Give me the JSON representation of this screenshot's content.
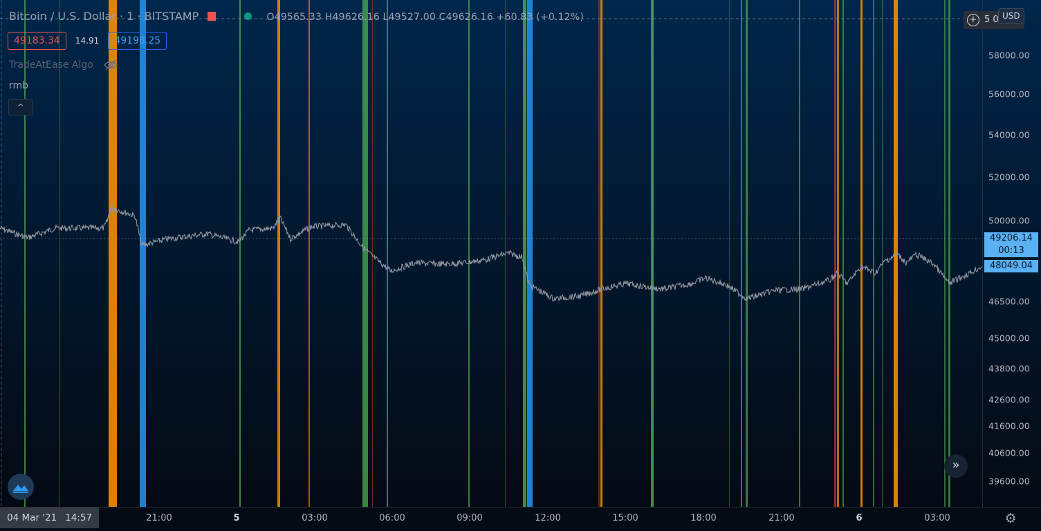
{
  "symbol": {
    "name": "Bitcoin / U.S. Dollar",
    "interval": "1",
    "exchange": "BITSTAMP",
    "ohlc": "O49565.33 H49626.16 L49527.00 C49626.16 +60.83 (+0.12%)"
  },
  "quote": {
    "bid": "49183.34",
    "spread": "14.91",
    "ask": "49198.25"
  },
  "indicators": [
    {
      "name": "TradeAtEase Algo",
      "hidden_icon": "eye-off-icon"
    },
    {
      "name": "rmb"
    }
  ],
  "collapse_button": "^",
  "price_axis": {
    "currency": "USD",
    "top_right_value": "5",
    "top_right_suffix": "0",
    "ticks": [
      "58000.00",
      "56000.00",
      "54000.00",
      "52000.00",
      "50000.00",
      "46500.00",
      "45000.00",
      "43800.00",
      "42600.00",
      "41600.00",
      "40600.00",
      "39600.00"
    ],
    "last_price": "49206.14",
    "countdown": "00:13",
    "marker_price": "48049.04"
  },
  "time_axis": {
    "date_stamp": "04 Mar '21",
    "time_stamp": "14:57",
    "ticks": [
      {
        "label": "21:00",
        "bold": false
      },
      {
        "label": "5",
        "bold": true
      },
      {
        "label": "03:00",
        "bold": false
      },
      {
        "label": "06:00",
        "bold": false
      },
      {
        "label": "09:00",
        "bold": false
      },
      {
        "label": "12:00",
        "bold": false
      },
      {
        "label": "15:00",
        "bold": false
      },
      {
        "label": "18:00",
        "bold": false
      },
      {
        "label": "21:00",
        "bold": false
      },
      {
        "label": "6",
        "bold": true
      },
      {
        "label": "03:00",
        "bold": false
      }
    ]
  },
  "colors": {
    "green": "#4caf50",
    "orange": "#ff9800",
    "blue": "#2196f3",
    "red": "#c0392b",
    "price_line": "#9598a1",
    "accent": "#5ab1f3"
  },
  "icons": {
    "settings": "gear-icon",
    "scroll": "double-chevron-right-icon",
    "logo": "tradingview-logo-icon",
    "add": "plus-circle-icon"
  }
}
